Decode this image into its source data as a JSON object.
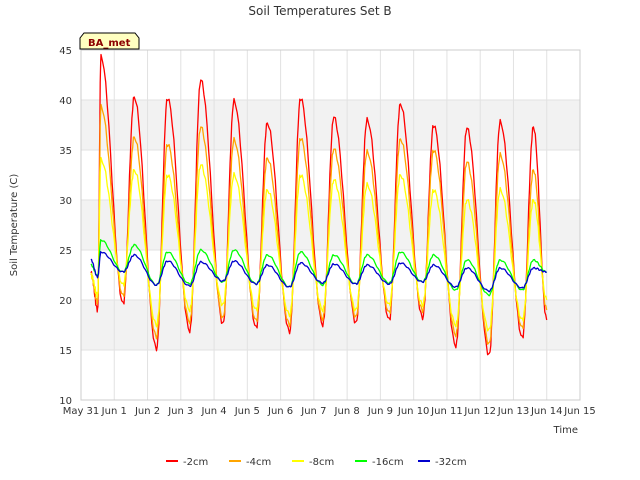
{
  "chart_data": {
    "type": "line",
    "title": "Soil Temperatures Set B",
    "xlabel": "Time",
    "ylabel": "Soil Temperature (C)",
    "badge": "BA_met",
    "ylim": [
      10,
      45
    ],
    "xlim": [
      0,
      15
    ],
    "yticks": [
      "10",
      "15",
      "20",
      "25",
      "30",
      "35",
      "40",
      "45"
    ],
    "xticks": [
      "May 31",
      "Jun 1",
      "Jun 2",
      "Jun 3",
      "Jun 4",
      "Jun 5",
      "Jun 6",
      "Jun 7",
      "Jun 8",
      "Jun 9",
      "Jun 10",
      "Jun 11",
      "Jun 12",
      "Jun 13",
      "Jun 14",
      "Jun 15"
    ],
    "grid": true,
    "legend_position": "bottom",
    "daily_extremes": [
      {
        "name": "-2cm",
        "color": "#ff0000",
        "start": 22.7,
        "max": [
          44.3,
          40.3,
          40.2,
          42.0,
          39.9,
          37.7,
          40.2,
          38.3,
          38.0,
          39.6,
          37.5,
          37.2,
          37.8,
          37.3
        ],
        "min": [
          19.0,
          19.6,
          15.1,
          16.9,
          17.6,
          17.2,
          16.8,
          17.5,
          17.7,
          18.0,
          18.2,
          15.4,
          14.5,
          16.2
        ],
        "end": 18.0
      },
      {
        "name": "-4cm",
        "color": "#ffa500",
        "start": 22.5,
        "max": [
          39.3,
          36.3,
          35.6,
          37.3,
          36.0,
          34.2,
          36.2,
          35.1,
          34.8,
          36.1,
          35.0,
          33.8,
          34.5,
          33.0
        ],
        "min": [
          19.8,
          20.4,
          16.3,
          17.8,
          18.2,
          17.9,
          17.5,
          18.1,
          18.3,
          18.7,
          18.9,
          16.5,
          15.6,
          17.2
        ],
        "end": 19.0
      },
      {
        "name": "-8cm",
        "color": "#ffff00",
        "start": 22.5,
        "max": [
          34.0,
          33.0,
          32.5,
          33.5,
          32.5,
          31.0,
          32.5,
          32.0,
          31.5,
          32.5,
          31.0,
          30.0,
          31.0,
          30.0
        ],
        "min": [
          20.5,
          21.5,
          17.5,
          19.0,
          19.5,
          19.0,
          18.5,
          19.0,
          19.0,
          19.5,
          19.5,
          17.5,
          17.0,
          18.0
        ],
        "end": 20.0
      },
      {
        "name": "-16cm",
        "color": "#00ff00",
        "start": 23.5,
        "max": [
          26.0,
          25.5,
          24.8,
          25.0,
          25.0,
          24.5,
          24.8,
          24.5,
          24.5,
          24.8,
          24.5,
          24.0,
          24.0,
          24.0
        ],
        "min": [
          22.4,
          22.8,
          21.5,
          21.6,
          21.8,
          21.6,
          21.3,
          21.5,
          21.6,
          21.7,
          21.8,
          21.0,
          20.5,
          21.0
        ],
        "end": 22.8
      },
      {
        "name": "-32cm",
        "color": "#0000cd",
        "start": 24.0,
        "max": [
          24.8,
          24.5,
          23.9,
          23.8,
          23.9,
          23.5,
          23.7,
          23.6,
          23.5,
          23.7,
          23.5,
          23.2,
          23.2,
          23.2
        ],
        "min": [
          22.3,
          22.8,
          21.5,
          21.4,
          21.9,
          21.6,
          21.3,
          21.7,
          21.6,
          21.6,
          21.8,
          21.3,
          20.9,
          21.2
        ],
        "end": 22.8
      }
    ]
  }
}
